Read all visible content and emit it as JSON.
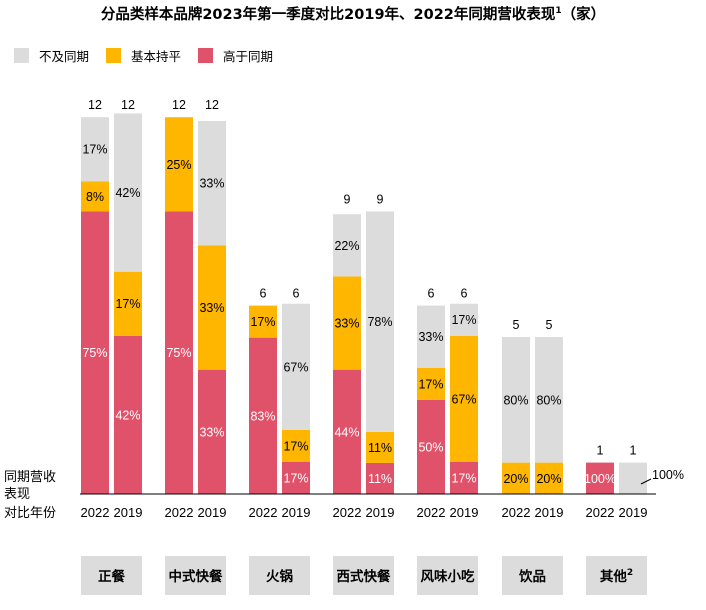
{
  "chart_data": {
    "type": "bar",
    "title": "分品类样本品牌2023年第一季度对比2019年、2022年同期营收表现",
    "title_sup": "1",
    "title_suffix": "（家）",
    "legend_position": "top-left",
    "legend": [
      {
        "name": "不及同期",
        "color": "#dcdcdc"
      },
      {
        "name": "基本持平",
        "color": "#ffb600"
      },
      {
        "name": "高于同期",
        "color": "#e0526a"
      }
    ],
    "y_axis_label": [
      "同期营收",
      "表现"
    ],
    "x_axis_label": "对比年份",
    "grid": false,
    "categories": [
      {
        "name": "正餐",
        "sup": "",
        "bars": [
          {
            "year": "2022",
            "total": "12",
            "segments": [
              {
                "series": "高于同期",
                "value": 75,
                "label": "75%"
              },
              {
                "series": "基本持平",
                "value": 8,
                "label": "8%"
              },
              {
                "series": "不及同期",
                "value": 17,
                "label": "17%"
              }
            ]
          },
          {
            "year": "2019",
            "total": "12",
            "segments": [
              {
                "series": "高于同期",
                "value": 42,
                "label": "42%"
              },
              {
                "series": "基本持平",
                "value": 17,
                "label": "17%"
              },
              {
                "series": "不及同期",
                "value": 42,
                "label": "42%"
              }
            ]
          }
        ]
      },
      {
        "name": "中式快餐",
        "sup": "",
        "bars": [
          {
            "year": "2022",
            "total": "12",
            "segments": [
              {
                "series": "高于同期",
                "value": 75,
                "label": "75%"
              },
              {
                "series": "基本持平",
                "value": 25,
                "label": "25%"
              }
            ]
          },
          {
            "year": "2019",
            "total": "12",
            "segments": [
              {
                "series": "高于同期",
                "value": 33,
                "label": "33%"
              },
              {
                "series": "基本持平",
                "value": 33,
                "label": "33%"
              },
              {
                "series": "不及同期",
                "value": 33,
                "label": "33%"
              }
            ]
          }
        ]
      },
      {
        "name": "火锅",
        "sup": "",
        "bars": [
          {
            "year": "2022",
            "total": "6",
            "segments": [
              {
                "series": "高于同期",
                "value": 83,
                "label": "83%"
              },
              {
                "series": "基本持平",
                "value": 17,
                "label": "17%"
              }
            ]
          },
          {
            "year": "2019",
            "total": "6",
            "segments": [
              {
                "series": "高于同期",
                "value": 17,
                "label": "17%"
              },
              {
                "series": "基本持平",
                "value": 17,
                "label": "17%"
              },
              {
                "series": "不及同期",
                "value": 67,
                "label": "67%"
              }
            ]
          }
        ]
      },
      {
        "name": "西式快餐",
        "sup": "",
        "bars": [
          {
            "year": "2022",
            "total": "9",
            "segments": [
              {
                "series": "高于同期",
                "value": 44,
                "label": "44%"
              },
              {
                "series": "基本持平",
                "value": 33,
                "label": "33%"
              },
              {
                "series": "不及同期",
                "value": 22,
                "label": "22%"
              }
            ]
          },
          {
            "year": "2019",
            "total": "9",
            "segments": [
              {
                "series": "高于同期",
                "value": 11,
                "label": "11%"
              },
              {
                "series": "基本持平",
                "value": 11,
                "label": "11%"
              },
              {
                "series": "不及同期",
                "value": 78,
                "label": "78%"
              }
            ]
          }
        ]
      },
      {
        "name": "风味小吃",
        "sup": "",
        "bars": [
          {
            "year": "2022",
            "total": "6",
            "segments": [
              {
                "series": "高于同期",
                "value": 50,
                "label": "50%"
              },
              {
                "series": "基本持平",
                "value": 17,
                "label": "17%"
              },
              {
                "series": "不及同期",
                "value": 33,
                "label": "33%"
              }
            ]
          },
          {
            "year": "2019",
            "total": "6",
            "segments": [
              {
                "series": "高于同期",
                "value": 17,
                "label": "17%"
              },
              {
                "series": "基本持平",
                "value": 67,
                "label": "67%"
              },
              {
                "series": "不及同期",
                "value": 17,
                "label": "17%"
              }
            ]
          }
        ]
      },
      {
        "name": "饮品",
        "sup": "",
        "bars": [
          {
            "year": "2022",
            "total": "5",
            "segments": [
              {
                "series": "基本持平",
                "value": 20,
                "label": "20%"
              },
              {
                "series": "不及同期",
                "value": 80,
                "label": "80%"
              }
            ]
          },
          {
            "year": "2019",
            "total": "5",
            "segments": [
              {
                "series": "基本持平",
                "value": 20,
                "label": "20%"
              },
              {
                "series": "不及同期",
                "value": 80,
                "label": "80%"
              }
            ]
          }
        ]
      },
      {
        "name": "其他",
        "sup": "2",
        "bars": [
          {
            "year": "2022",
            "total": "1",
            "segments": [
              {
                "series": "高于同期",
                "value": 100,
                "label": "100%"
              }
            ]
          },
          {
            "year": "2019",
            "total": "1",
            "segments": [
              {
                "series": "不及同期",
                "value": 100,
                "label": "100%",
                "outside": true
              }
            ]
          }
        ]
      }
    ]
  }
}
